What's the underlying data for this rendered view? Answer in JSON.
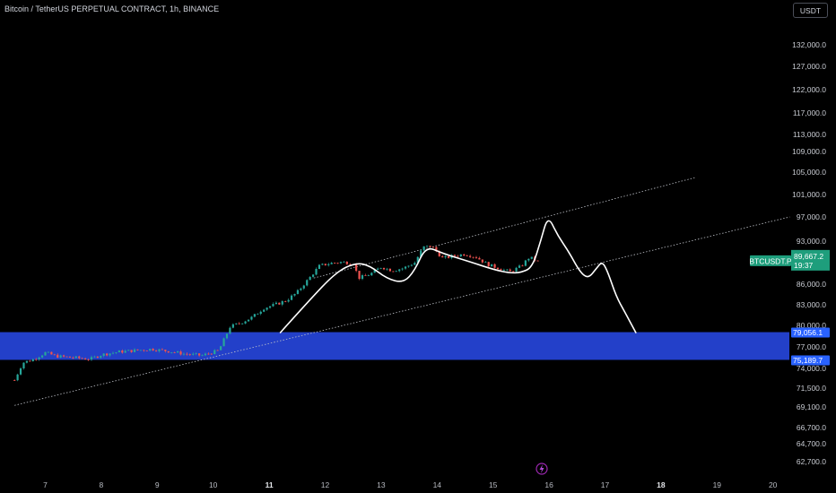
{
  "header": {
    "title": "Bitcoin / TetherUS PERPETUAL CONTRACT, 1h, BINANCE",
    "currency": "USDT"
  },
  "colors": {
    "background": "#000000",
    "up": "#26a69a",
    "down": "#ef5350",
    "zone": "#2340c9",
    "price_badge": "#1e9e7c",
    "zone_badge": "#2962ff",
    "drawing": "#ffffff"
  },
  "chart_data": {
    "type": "candlestick",
    "x_ticks": [
      {
        "label": "7",
        "x": 7,
        "bold": false
      },
      {
        "label": "8",
        "x": 8,
        "bold": false
      },
      {
        "label": "9",
        "x": 9,
        "bold": false
      },
      {
        "label": "10",
        "x": 10,
        "bold": false
      },
      {
        "label": "11",
        "x": 11,
        "bold": true
      },
      {
        "label": "12",
        "x": 12,
        "bold": false
      },
      {
        "label": "13",
        "x": 13,
        "bold": false
      },
      {
        "label": "14",
        "x": 14,
        "bold": false
      },
      {
        "label": "15",
        "x": 15,
        "bold": false
      },
      {
        "label": "16",
        "x": 16,
        "bold": false
      },
      {
        "label": "17",
        "x": 17,
        "bold": false
      },
      {
        "label": "18",
        "x": 18,
        "bold": true
      },
      {
        "label": "19",
        "x": 19,
        "bold": false
      },
      {
        "label": "20",
        "x": 20,
        "bold": false
      }
    ],
    "y_ticks": [
      {
        "label": "132,000.0",
        "value": 132000
      },
      {
        "label": "127,000.0",
        "value": 127000
      },
      {
        "label": "122,000.0",
        "value": 122000
      },
      {
        "label": "117,000.0",
        "value": 117000
      },
      {
        "label": "113,000.0",
        "value": 113000
      },
      {
        "label": "109,000.0",
        "value": 109000
      },
      {
        "label": "105,000.0",
        "value": 105000
      },
      {
        "label": "101,000.0",
        "value": 101000
      },
      {
        "label": "97,000.0",
        "value": 97000
      },
      {
        "label": "93,000.0",
        "value": 93000
      },
      {
        "label": "86,000.0",
        "value": 86000
      },
      {
        "label": "83,000.0",
        "value": 83000
      },
      {
        "label": "80,000.0",
        "value": 80000
      },
      {
        "label": "77,000.0",
        "value": 77000
      },
      {
        "label": "74,000.0",
        "value": 74000
      },
      {
        "label": "71,500.0",
        "value": 71500
      },
      {
        "label": "69,100.0",
        "value": 69100
      },
      {
        "label": "66,700.0",
        "value": 66700
      },
      {
        "label": "64,700.0",
        "value": 64700
      },
      {
        "label": "62,700.0",
        "value": 62700
      }
    ],
    "price_path": [
      [
        6.45,
        72500
      ],
      [
        6.6,
        74800
      ],
      [
        6.8,
        75300
      ],
      [
        7.0,
        76200
      ],
      [
        7.2,
        75700
      ],
      [
        7.5,
        75500
      ],
      [
        7.8,
        75300
      ],
      [
        8.0,
        75900
      ],
      [
        8.3,
        76300
      ],
      [
        8.6,
        76500
      ],
      [
        8.9,
        76700
      ],
      [
        9.2,
        76400
      ],
      [
        9.5,
        76000
      ],
      [
        9.8,
        75800
      ],
      [
        10.1,
        76500
      ],
      [
        10.3,
        79800
      ],
      [
        10.5,
        80400
      ],
      [
        10.7,
        81200
      ],
      [
        10.9,
        82500
      ],
      [
        11.1,
        83000
      ],
      [
        11.3,
        83600
      ],
      [
        11.5,
        84800
      ],
      [
        11.7,
        86800
      ],
      [
        11.9,
        89000
      ],
      [
        12.1,
        89400
      ],
      [
        12.3,
        89600
      ],
      [
        12.5,
        89400
      ],
      [
        12.6,
        87000
      ],
      [
        12.8,
        87600
      ],
      [
        13.0,
        88800
      ],
      [
        13.2,
        88200
      ],
      [
        13.4,
        88600
      ],
      [
        13.6,
        89500
      ],
      [
        13.75,
        92000
      ],
      [
        13.9,
        92200
      ],
      [
        14.1,
        90200
      ],
      [
        14.3,
        90600
      ],
      [
        14.5,
        90900
      ],
      [
        14.7,
        90400
      ],
      [
        14.9,
        89200
      ],
      [
        15.1,
        88600
      ],
      [
        15.3,
        88000
      ],
      [
        15.5,
        88900
      ],
      [
        15.65,
        90400
      ],
      [
        15.8,
        89667
      ]
    ],
    "current_price": {
      "value": 89667.2,
      "symbol": "BTCUSDT.P",
      "countdown": "19:37"
    },
    "support_zone": {
      "high": 79056.1,
      "low": 75189.7,
      "high_label": "79,056.1",
      "low_label": "75,189.7"
    },
    "channel_lines": [
      {
        "points": [
          [
            11.8,
            87000
          ],
          [
            18.6,
            104000
          ]
        ]
      },
      {
        "points": [
          [
            6.45,
            69300
          ],
          [
            20.3,
            97000
          ]
        ]
      }
    ],
    "projection_path": [
      [
        11.2,
        79000
      ],
      [
        11.7,
        83500
      ],
      [
        12.2,
        88000
      ],
      [
        12.55,
        89500
      ],
      [
        12.8,
        89000
      ],
      [
        13.1,
        86900
      ],
      [
        13.4,
        86200
      ],
      [
        13.6,
        88200
      ],
      [
        13.8,
        92200
      ],
      [
        14.1,
        91000
      ],
      [
        14.6,
        89600
      ],
      [
        15.0,
        88400
      ],
      [
        15.3,
        87800
      ],
      [
        15.5,
        87900
      ],
      [
        15.7,
        88700
      ],
      [
        15.85,
        93000
      ],
      [
        15.98,
        97300
      ],
      [
        16.15,
        94000
      ],
      [
        16.35,
        91300
      ],
      [
        16.55,
        88000
      ],
      [
        16.7,
        86900
      ],
      [
        16.85,
        88600
      ],
      [
        16.95,
        89700
      ],
      [
        17.05,
        88000
      ],
      [
        17.2,
        84200
      ],
      [
        17.35,
        82000
      ],
      [
        17.55,
        79000
      ]
    ]
  }
}
